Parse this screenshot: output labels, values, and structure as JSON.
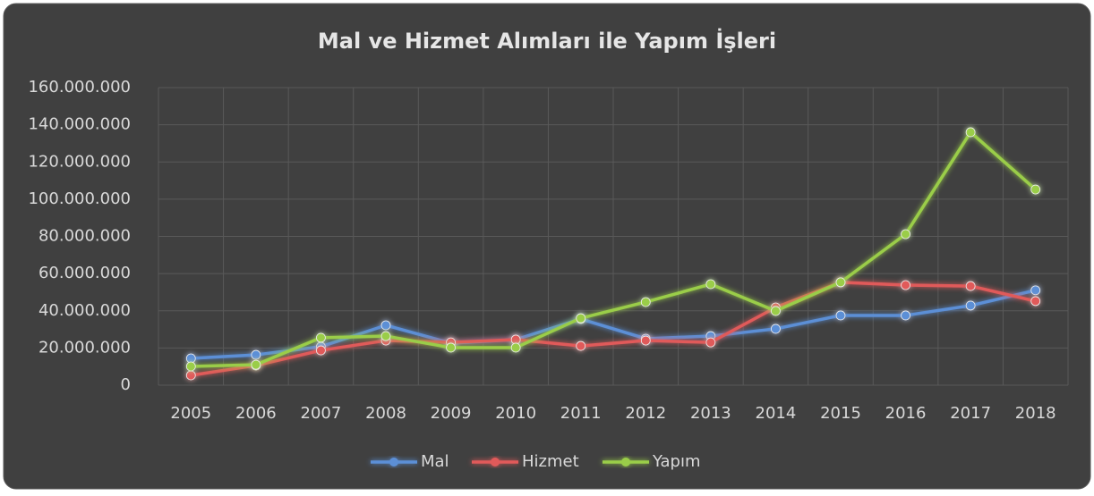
{
  "chart_data": {
    "type": "line",
    "title": "Mal ve Hizmet Alımları ile Yapım İşleri",
    "categories": [
      "2005",
      "2006",
      "2007",
      "2008",
      "2009",
      "2010",
      "2011",
      "2012",
      "2013",
      "2014",
      "2015",
      "2016",
      "2017",
      "2018"
    ],
    "series": [
      {
        "name": "Mal",
        "color": "#5b8fd6",
        "values": [
          14400000,
          16300000,
          20700000,
          32200000,
          22600000,
          24500000,
          35600000,
          25000000,
          26400000,
          30300000,
          37500000,
          37500000,
          42800000,
          51000000
        ]
      },
      {
        "name": "Hizmet",
        "color": "#e05a5a",
        "values": [
          5300000,
          10600000,
          18700000,
          24000000,
          23000000,
          24500000,
          21100000,
          24000000,
          23000000,
          41800000,
          55300000,
          53800000,
          53300000,
          45200000
        ]
      },
      {
        "name": "Yapım",
        "color": "#9acd48",
        "values": [
          10100000,
          11000000,
          25500000,
          26400000,
          20200000,
          20200000,
          36000000,
          44700000,
          54300000,
          39900000,
          55300000,
          81200000,
          136000000,
          105200000
        ]
      }
    ],
    "ylim": [
      0,
      160000000
    ],
    "yticks": [
      0,
      {
        "value": 20000000,
        "label": "20.000.000"
      },
      {
        "value": 40000000,
        "label": "40.000.000"
      },
      {
        "value": 60000000,
        "label": "60.000.000"
      },
      {
        "value": 80000000,
        "label": "80.000.000"
      },
      {
        "value": 100000000,
        "label": "100.000.000"
      },
      {
        "value": 120000000,
        "label": "120.000.000"
      },
      {
        "value": 140000000,
        "label": "140.000.000"
      },
      {
        "value": 160000000,
        "label": "160.000.000"
      }
    ],
    "grid": true,
    "legend": "bottom"
  }
}
